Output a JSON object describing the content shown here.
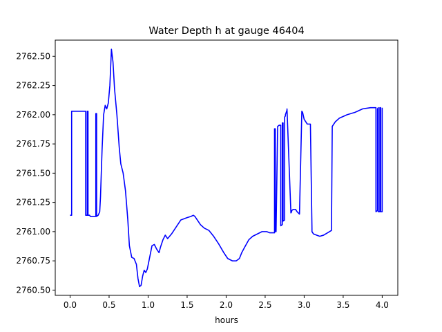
{
  "chart_data": {
    "type": "line",
    "title": "Water Depth h at gauge 46404",
    "xlabel": "hours",
    "ylabel": "",
    "xlim": [
      -0.19,
      4.2
    ],
    "ylim": [
      2760.455,
      2762.638
    ],
    "x_ticks": [
      0.0,
      0.5,
      1.0,
      1.5,
      2.0,
      2.5,
      3.0,
      3.5,
      4.0
    ],
    "x_tick_labels": [
      "0.0",
      "0.5",
      "1.0",
      "1.5",
      "2.0",
      "2.5",
      "3.0",
      "3.5",
      "4.0"
    ],
    "y_ticks": [
      2760.5,
      2760.75,
      2761.0,
      2761.25,
      2761.5,
      2761.75,
      2762.0,
      2762.25,
      2762.5
    ],
    "y_tick_labels": [
      "2760.50",
      "2760.75",
      "2761.00",
      "2761.25",
      "2761.50",
      "2761.75",
      "2762.00",
      "2762.25",
      "2762.50"
    ],
    "grid": false,
    "series": [
      {
        "color": "#0000ff",
        "x": [
          0.0,
          0.02,
          0.02,
          0.19,
          0.2,
          0.2,
          0.22,
          0.22,
          0.23,
          0.23,
          0.25,
          0.26,
          0.3,
          0.33,
          0.33,
          0.34,
          0.34,
          0.36,
          0.38,
          0.39,
          0.41,
          0.43,
          0.45,
          0.47,
          0.49,
          0.51,
          0.53,
          0.55,
          0.57,
          0.6,
          0.63,
          0.65,
          0.68,
          0.71,
          0.74,
          0.76,
          0.79,
          0.82,
          0.85,
          0.87,
          0.89,
          0.91,
          0.93,
          0.95,
          0.97,
          0.99,
          1.02,
          1.05,
          1.08,
          1.11,
          1.14,
          1.16,
          1.19,
          1.22,
          1.25,
          1.3,
          1.35,
          1.42,
          1.5,
          1.55,
          1.58,
          1.6,
          1.63,
          1.67,
          1.72,
          1.78,
          1.84,
          1.9,
          1.97,
          2.02,
          2.08,
          2.13,
          2.17,
          2.2,
          2.24,
          2.29,
          2.34,
          2.4,
          2.46,
          2.52,
          2.56,
          2.6,
          2.62,
          2.62,
          2.63,
          2.63,
          2.64,
          2.66,
          2.66,
          2.68,
          2.69,
          2.7,
          2.7,
          2.72,
          2.72,
          2.73,
          2.73,
          2.75,
          2.75,
          2.76,
          2.76,
          2.78,
          2.78,
          2.83,
          2.84,
          2.84,
          2.86,
          2.89,
          2.91,
          2.94,
          2.97,
          2.98,
          2.98,
          3.0,
          3.04,
          3.08,
          3.1,
          3.1,
          3.12,
          3.16,
          3.2,
          3.25,
          3.3,
          3.35,
          3.35,
          3.36,
          3.36,
          3.4,
          3.45,
          3.55,
          3.65,
          3.75,
          3.85,
          3.91,
          3.92,
          3.92,
          3.94,
          3.94,
          3.95,
          3.95,
          3.97,
          3.97,
          3.98,
          3.98,
          4.0,
          4.0
        ],
        "y": [
          2761.14,
          2761.14,
          2762.03,
          2762.03,
          2762.03,
          2761.14,
          2761.14,
          2762.03,
          2762.03,
          2761.14,
          2761.14,
          2761.13,
          2761.13,
          2761.13,
          2762.01,
          2762.01,
          2761.13,
          2761.14,
          2761.17,
          2761.3,
          2761.7,
          2762.0,
          2762.08,
          2762.05,
          2762.1,
          2762.25,
          2762.56,
          2762.45,
          2762.22,
          2762.0,
          2761.72,
          2761.58,
          2761.5,
          2761.35,
          2761.1,
          2760.88,
          2760.78,
          2760.77,
          2760.72,
          2760.6,
          2760.53,
          2760.54,
          2760.62,
          2760.67,
          2760.65,
          2760.68,
          2760.78,
          2760.88,
          2760.89,
          2760.85,
          2760.82,
          2760.87,
          2760.93,
          2760.97,
          2760.94,
          2760.98,
          2761.03,
          2761.1,
          2761.12,
          2761.13,
          2761.14,
          2761.13,
          2761.1,
          2761.06,
          2761.03,
          2761.01,
          2760.96,
          2760.9,
          2760.82,
          2760.77,
          2760.75,
          2760.75,
          2760.77,
          2760.82,
          2760.87,
          2760.93,
          2760.96,
          2760.98,
          2761.0,
          2761.0,
          2760.99,
          2760.99,
          2760.99,
          2761.88,
          2761.88,
          2761.0,
          2761.0,
          2761.89,
          2761.9,
          2761.91,
          2761.91,
          2761.91,
          2761.05,
          2761.06,
          2761.93,
          2761.93,
          2761.09,
          2761.1,
          2761.98,
          2761.99,
          2762.0,
          2762.04,
          2762.05,
          2761.16,
          2761.17,
          2761.18,
          2761.19,
          2761.19,
          2761.17,
          2761.15,
          2762.03,
          2762.02,
          2762.02,
          2761.96,
          2761.92,
          2761.92,
          2761.03,
          2761.0,
          2760.98,
          2760.97,
          2760.96,
          2760.97,
          2760.99,
          2761.01,
          2761.01,
          2761.9,
          2761.9,
          2761.94,
          2761.97,
          2762.0,
          2762.02,
          2762.05,
          2762.06,
          2762.06,
          2762.06,
          2761.17,
          2761.18,
          2762.05,
          2762.06,
          2761.17,
          2761.17,
          2762.06,
          2762.06,
          2761.17,
          2761.17,
          2762.06
        ]
      }
    ]
  }
}
